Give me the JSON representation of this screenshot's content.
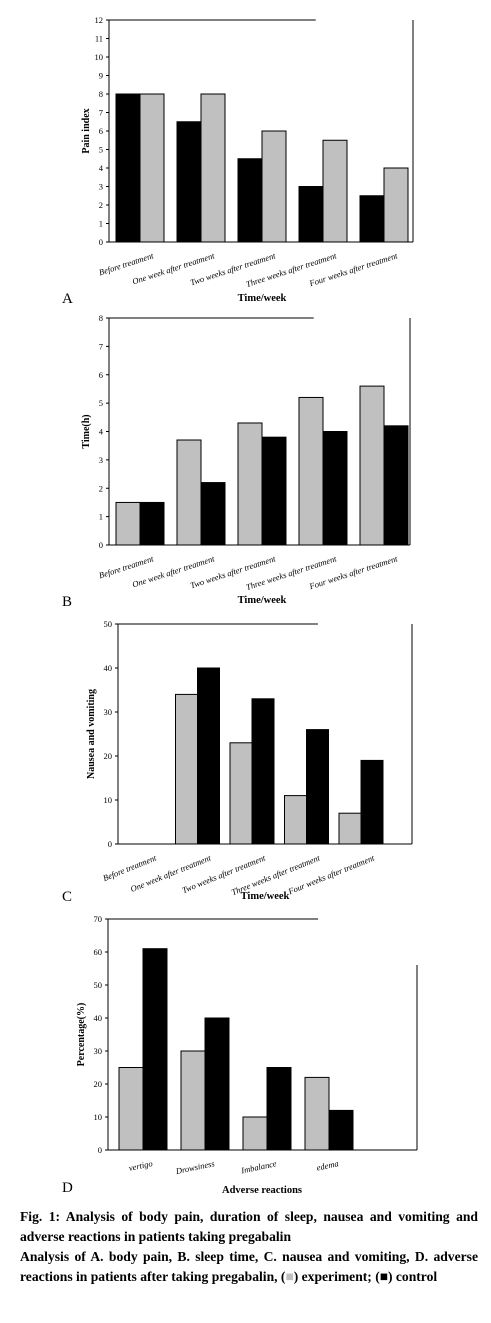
{
  "colors": {
    "experiment": "#c0c0c0",
    "control": "#000000"
  },
  "panels": {
    "A": "A",
    "B": "B",
    "C": "C",
    "D": "D"
  },
  "caption": {
    "title": "Fig. 1: Analysis of body pain, duration of sleep, nausea and vomiting and adverse reactions in patients taking pregabalin",
    "text_prefix": "Analysis of A. body pain, B. sleep time, C. nausea and vomiting, D. adverse reactions in patients after taking pregabalin, (",
    "square_grey": "■",
    "text_middle": ") experiment; (",
    "square_black": "■",
    "text_suffix": ") control"
  },
  "chart_data": [
    {
      "panel": "A",
      "type": "bar",
      "categories": [
        "Before treatment",
        "One week after treatment",
        "Two weeks after treatment",
        "Three weeks after treatment",
        "Four weeks after treatment"
      ],
      "series": [
        {
          "color": "#000000",
          "values": [
            8,
            6.5,
            4.5,
            3,
            2.5
          ]
        },
        {
          "color": "#c0c0c0",
          "values": [
            8,
            8,
            6,
            5.5,
            4
          ]
        }
      ],
      "ylim": [
        0,
        12
      ],
      "yticks": [
        0,
        1,
        2,
        3,
        4,
        5,
        6,
        7,
        8,
        9,
        10,
        11,
        12
      ],
      "xlabel": "Time/week",
      "ylabel": "Pain index"
    },
    {
      "panel": "B",
      "type": "bar",
      "categories": [
        "Before treatment",
        "One week after treatment",
        "Two weeks after treatment",
        "Three weeks after treatment",
        "Four weeks after treatment"
      ],
      "series": [
        {
          "color": "#c0c0c0",
          "values": [
            1.5,
            3.7,
            4.3,
            5.2,
            5.6
          ]
        },
        {
          "color": "#000000",
          "values": [
            1.5,
            2.2,
            3.8,
            4.0,
            4.2
          ]
        }
      ],
      "ylim": [
        0,
        8
      ],
      "yticks": [
        0,
        1,
        2,
        3,
        4,
        5,
        6,
        7,
        8
      ],
      "xlabel": "Time/week",
      "ylabel": "Time(h)"
    },
    {
      "panel": "C",
      "type": "bar",
      "categories": [
        "Before treatment",
        "One week after treatment",
        "Two weeks after treatment",
        "Three weeks after treatment",
        "Four weeks after treatment"
      ],
      "series": [
        {
          "color": "#c0c0c0",
          "values": [
            0,
            34,
            23,
            11,
            7
          ]
        },
        {
          "color": "#000000",
          "values": [
            0,
            40,
            33,
            26,
            19
          ]
        }
      ],
      "ylim": [
        0,
        50
      ],
      "yticks": [
        0,
        10,
        20,
        30,
        40,
        50
      ],
      "xlabel": "Time/week",
      "ylabel": "Nausea and vomiting"
    },
    {
      "panel": "D",
      "type": "bar",
      "categories": [
        "vertigo",
        "Drowsiness",
        "Imbalance",
        "edema"
      ],
      "series": [
        {
          "color": "#c0c0c0",
          "values": [
            25,
            30,
            10,
            22
          ]
        },
        {
          "color": "#000000",
          "values": [
            61,
            40,
            25,
            12
          ]
        }
      ],
      "ylim": [
        0,
        70
      ],
      "yticks": [
        0,
        10,
        20,
        30,
        40,
        50,
        60,
        70
      ],
      "xlabel": "Adverse reactions",
      "ylabel": "Percentage(%)"
    }
  ]
}
